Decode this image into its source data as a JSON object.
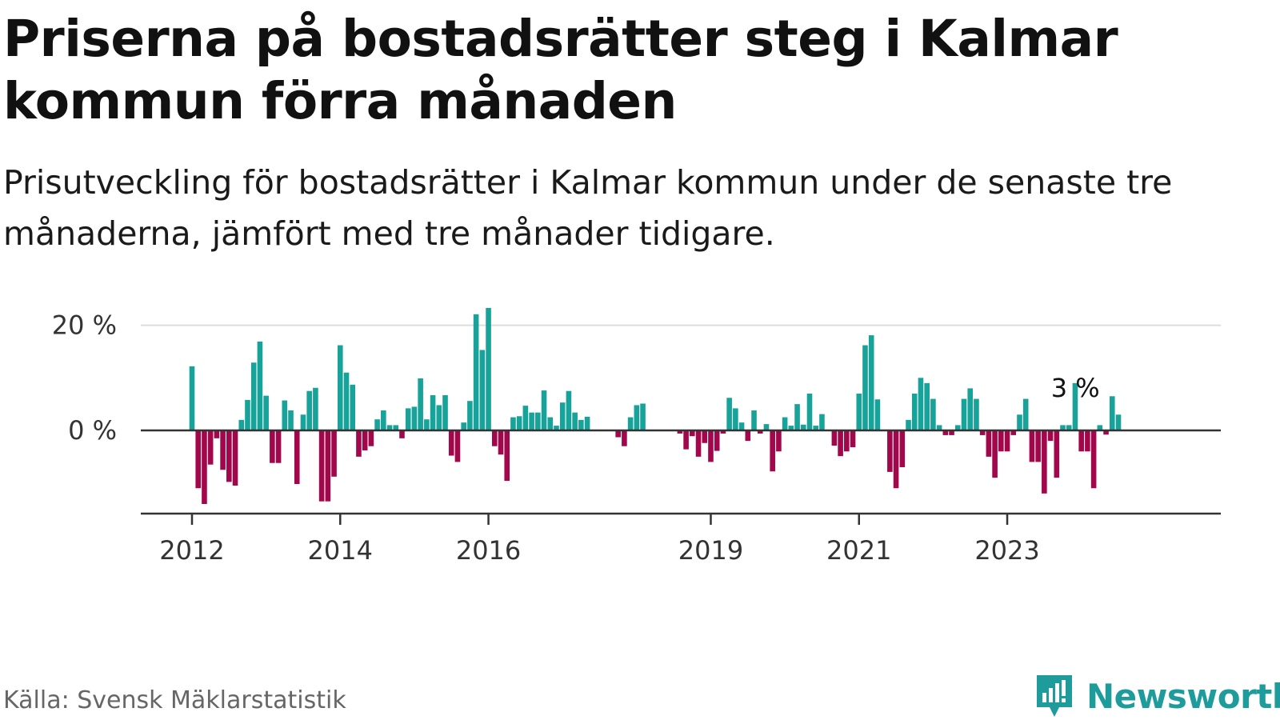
{
  "title": "Priserna på bostadsrätter steg i Kalmar kommun förra månaden",
  "subtitle": "Prisutveckling för bostadsrätter i Kalmar kommun under de senaste tre månaderna, jämfört med tre månader tidigare.",
  "source": "Källa: Svensk Mäklarstatistik",
  "brand": "Newsworthy",
  "colors": {
    "positive": "#17a399",
    "negative": "#a3074b",
    "grid": "#dddddd",
    "axis": "#333333",
    "brand": "#1e9c9c"
  },
  "chart_data": {
    "type": "bar",
    "y_ticks": [
      0,
      20
    ],
    "y_tick_labels": [
      "0 %",
      "20 %"
    ],
    "ylim": [
      -16,
      24
    ],
    "x_ticks": [
      {
        "label": "2012",
        "index": 0
      },
      {
        "label": "2014",
        "index": 24
      },
      {
        "label": "2016",
        "index": 48
      },
      {
        "label": "2019",
        "index": 84
      },
      {
        "label": "2021",
        "index": 108
      },
      {
        "label": "2023",
        "index": 132
      }
    ],
    "annotation": {
      "label": "3 %",
      "index": 142
    },
    "values": [
      12.2,
      -11.0,
      -14.0,
      -6.5,
      -1.5,
      -7.5,
      -9.8,
      -10.5,
      2.0,
      5.8,
      12.9,
      16.9,
      6.6,
      -6.2,
      -6.2,
      5.7,
      3.8,
      -10.2,
      3.0,
      7.5,
      8.1,
      -13.5,
      -13.5,
      -8.8,
      16.2,
      11.0,
      8.7,
      -5.0,
      -3.8,
      -3.0,
      2.1,
      3.8,
      1.0,
      1.0,
      -1.5,
      4.2,
      4.5,
      9.9,
      2.1,
      6.7,
      4.8,
      6.7,
      -4.8,
      -6.0,
      1.5,
      5.6,
      22.1,
      15.3,
      23.3,
      -3.0,
      -4.6,
      -9.6,
      2.5,
      2.7,
      4.7,
      3.4,
      3.4,
      7.6,
      2.5,
      0.9,
      5.3,
      7.5,
      3.4,
      2.0,
      2.6,
      0.0,
      0.0,
      0.0,
      0.0,
      -1.3,
      -3.0,
      2.5,
      4.8,
      5.1,
      0.0,
      0.0,
      0.0,
      0.0,
      0.0,
      -0.6,
      -3.6,
      -1.1,
      -5.0,
      -2.4,
      -6.0,
      -3.9,
      -0.6,
      6.2,
      4.2,
      1.5,
      -2.0,
      3.8,
      -0.6,
      1.2,
      -7.8,
      -4.0,
      2.5,
      0.9,
      5.0,
      1.1,
      7.0,
      0.9,
      3.1,
      0.0,
      -2.9,
      -4.9,
      -4.0,
      -3.2,
      7.0,
      16.2,
      18.1,
      5.9,
      0.0,
      -7.9,
      -11.0,
      -7.0,
      2.0,
      7.0,
      10.0,
      9.0,
      6.0,
      1.0,
      -0.9,
      -0.9,
      1.0,
      6.0,
      8.0,
      6.0,
      -0.9,
      -5.0,
      -9.0,
      -4.0,
      -4.0,
      -0.9,
      3.0,
      6.0,
      -6.0,
      -6.0,
      -12.0,
      -2.0,
      -9.0,
      1.0,
      1.0,
      9.0,
      -4.0,
      -4.0,
      -11.0,
      1.0,
      -0.8,
      6.5,
      3.0
    ]
  }
}
